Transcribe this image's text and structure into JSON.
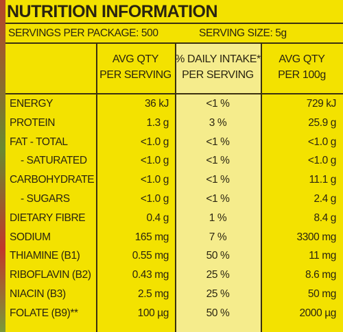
{
  "header": {
    "title": "NUTRITION INFORMATION",
    "servings_per_package": "SERVINGS PER PACKAGE: 500",
    "serving_size": "SERVING SIZE: 5g"
  },
  "table": {
    "columns": [
      [
        "AVG QTY",
        "PER SERVING"
      ],
      [
        "% DAILY INTAKE*",
        "PER SERVING"
      ],
      [
        "AVG QTY",
        "PER 100g"
      ]
    ],
    "rows": [
      [
        "ENERGY",
        "36 kJ",
        "<1 %",
        "729 kJ"
      ],
      [
        "PROTEIN",
        "1.3 g",
        "3 %",
        "25.9 g"
      ],
      [
        "FAT - TOTAL",
        "<1.0 g",
        "<1 %",
        "<1.0 g"
      ],
      [
        "- SATURATED",
        "<1.0 g",
        "<1 %",
        "<1.0 g"
      ],
      [
        "CARBOHYDRATE",
        "<1.0 g",
        "<1 %",
        "11.1 g"
      ],
      [
        "- SUGARS",
        "<1.0 g",
        "<1 %",
        "2.4 g"
      ],
      [
        "DIETARY FIBRE",
        "0.4 g",
        "1 %",
        "8.4 g"
      ],
      [
        "SODIUM",
        "165 mg",
        "7 %",
        "3300 mg"
      ],
      [
        "THIAMINE (B1)",
        "0.55 mg",
        "50 %",
        "11 mg"
      ],
      [
        "RIBOFLAVIN (B2)",
        "0.43 mg",
        "25 %",
        "8.6 mg"
      ],
      [
        "NIACIN (B3)",
        "2.5 mg",
        "25 %",
        "50 mg"
      ],
      [
        "FOLATE (B9)**",
        "100 µg",
        "50 %",
        "2000 µg"
      ]
    ]
  }
}
